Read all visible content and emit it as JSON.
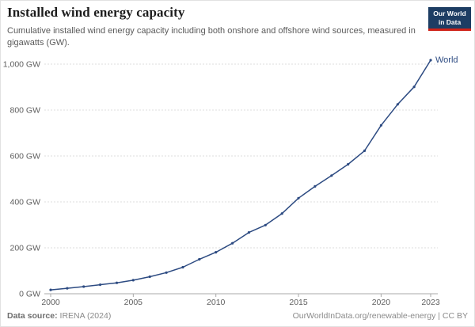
{
  "header": {
    "title": "Installed wind energy capacity",
    "subtitle": "Cumulative installed wind energy capacity including both onshore and offshore wind sources, measured in gigawatts (GW)."
  },
  "logo": {
    "line1": "Our World",
    "line2": "in Data"
  },
  "chart_data": {
    "type": "line",
    "title": "Installed wind energy capacity",
    "xlabel": "",
    "ylabel": "GW",
    "grid": "horizontal-dashed",
    "legend_position": "end-of-line",
    "x": [
      2000,
      2001,
      2002,
      2003,
      2004,
      2005,
      2006,
      2007,
      2008,
      2009,
      2010,
      2011,
      2012,
      2013,
      2014,
      2015,
      2016,
      2017,
      2018,
      2019,
      2020,
      2021,
      2022,
      2023
    ],
    "series": [
      {
        "name": "World",
        "values": [
          16.9,
          23.9,
          31.1,
          39.4,
          47.6,
          59.1,
          74.1,
          91.9,
          115.4,
          150.1,
          180.8,
          220.0,
          267.0,
          299.1,
          349.2,
          416.3,
          467.7,
          514.6,
          563.7,
          622.7,
          733.3,
          824.9,
          901.1,
          1017.2
        ],
        "color": "#2d4b82"
      }
    ],
    "yaxis": {
      "min": 0,
      "max": 1000,
      "ticks": [
        {
          "value": 0,
          "label": "0 GW"
        },
        {
          "value": 200,
          "label": "200 GW"
        },
        {
          "value": 400,
          "label": "400 GW"
        },
        {
          "value": 600,
          "label": "600 GW"
        },
        {
          "value": 800,
          "label": "800 GW"
        },
        {
          "value": 1000,
          "label": "1,000 GW"
        }
      ]
    },
    "xaxis": {
      "min": 2000,
      "max": 2023,
      "ticks": [
        {
          "value": 2000,
          "label": "2000"
        },
        {
          "value": 2005,
          "label": "2005"
        },
        {
          "value": 2010,
          "label": "2010"
        },
        {
          "value": 2015,
          "label": "2015"
        },
        {
          "value": 2020,
          "label": "2020"
        },
        {
          "value": 2023,
          "label": "2023"
        }
      ]
    }
  },
  "footer": {
    "source_label": "Data source:",
    "source_value": "IRENA (2024)",
    "link": "OurWorldInData.org/renewable-energy",
    "separator": " | ",
    "license": "CC BY"
  },
  "colors": {
    "line": "#2d4b82",
    "grid": "#dcdcdc",
    "axis": "#a8a8a8",
    "tick_text": "#5e5e5e",
    "logo_bg": "#1d3d63",
    "logo_stripe": "#cf2318"
  }
}
